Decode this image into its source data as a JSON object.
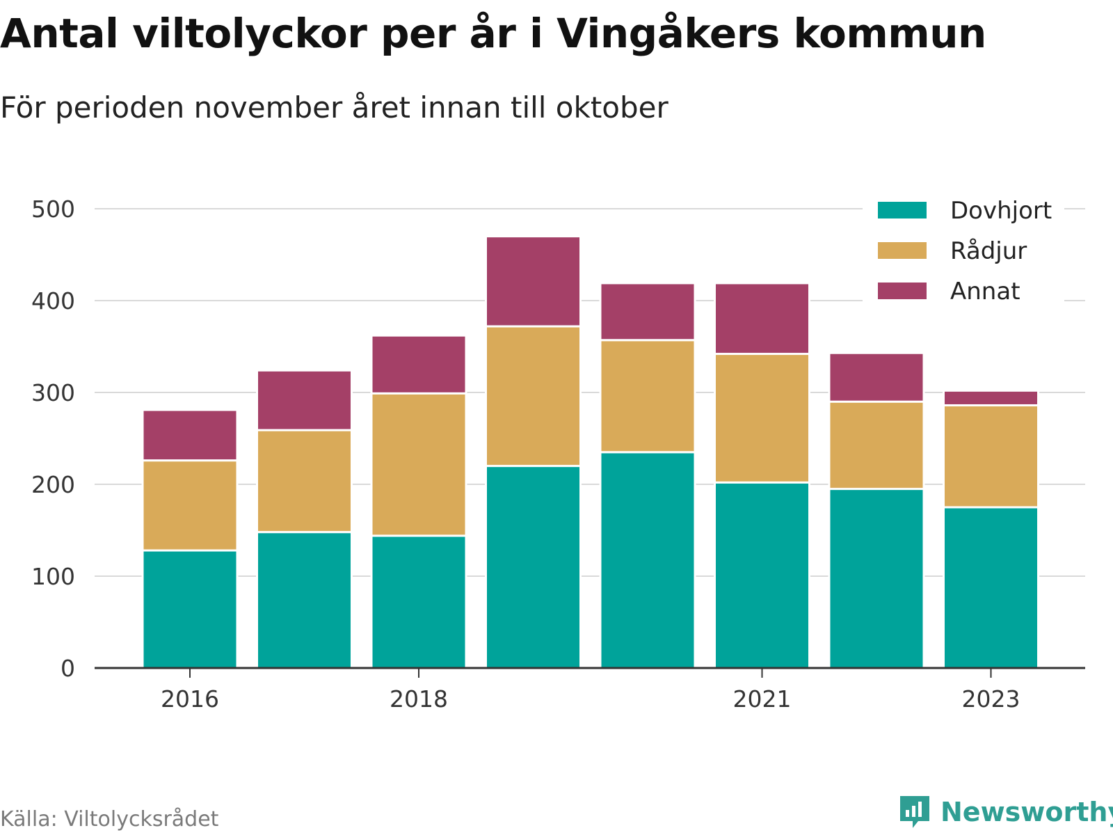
{
  "title": "Antal viltolyckor per år i Vingåkers kommun",
  "subtitle": "För perioden november året innan till oktober",
  "source": "Källa: Viltolycksrådet",
  "brand": {
    "name": "Newsworthy",
    "icon": "newsworthy-logo-icon",
    "color": "#2f9e93"
  },
  "chart_data": {
    "type": "bar",
    "stacked": true,
    "categories": [
      "2016",
      "2017",
      "2018",
      "2019",
      "2020",
      "2021",
      "2022",
      "2023"
    ],
    "x_tick_labels": [
      "2016",
      "2018",
      "2021",
      "2023"
    ],
    "series": [
      {
        "name": "Dovhjort",
        "color": "#00a39a",
        "values": [
          128,
          148,
          144,
          220,
          235,
          202,
          195,
          175
        ]
      },
      {
        "name": "Rådjur",
        "color": "#d9aa59",
        "values": [
          98,
          111,
          155,
          152,
          122,
          140,
          95,
          111
        ]
      },
      {
        "name": "Annat",
        "color": "#a44067",
        "values": [
          55,
          65,
          63,
          98,
          62,
          77,
          53,
          16
        ]
      }
    ],
    "ylim": [
      0,
      500
    ],
    "y_ticks": [
      0,
      100,
      200,
      300,
      400,
      500
    ],
    "xlabel": "",
    "ylabel": "",
    "grid": true,
    "legend_position": "top-right"
  }
}
